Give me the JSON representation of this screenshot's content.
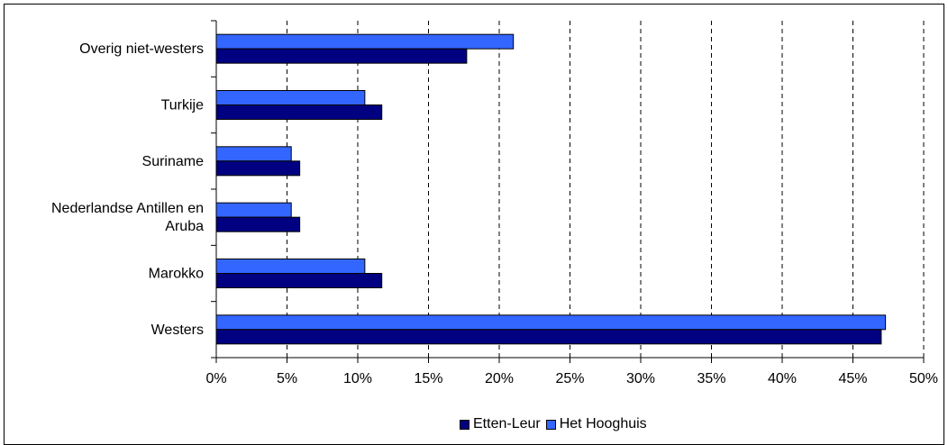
{
  "chart_data": {
    "type": "bar",
    "orientation": "horizontal",
    "title": "",
    "xlabel": "",
    "ylabel": "",
    "xlim": [
      0,
      50
    ],
    "x_ticks": [
      "0%",
      "5%",
      "10%",
      "15%",
      "20%",
      "25%",
      "30%",
      "35%",
      "40%",
      "45%",
      "50%"
    ],
    "x_tick_values": [
      0,
      5,
      10,
      15,
      20,
      25,
      30,
      35,
      40,
      45,
      50
    ],
    "grid": "vertical dashed",
    "legend_position": "bottom",
    "categories": [
      [
        "Overig niet-westers"
      ],
      [
        "Turkije"
      ],
      [
        "Suriname"
      ],
      [
        "Nederlandse Antillen en",
        "Aruba"
      ],
      [
        "Marokko"
      ],
      [
        "Westers"
      ]
    ],
    "series": [
      {
        "name": "Het Hooghuis",
        "color": "#3366ff",
        "values": [
          21.0,
          10.5,
          5.3,
          5.3,
          10.5,
          47.3
        ]
      },
      {
        "name": "Etten-Leur",
        "color": "#000080",
        "values": [
          17.7,
          11.7,
          5.9,
          5.9,
          11.7,
          47.0
        ]
      }
    ]
  },
  "legend": {
    "items": [
      {
        "name": "Etten-Leur",
        "color": "#000080"
      },
      {
        "name": "Het Hooghuis",
        "color": "#3366ff"
      }
    ]
  }
}
